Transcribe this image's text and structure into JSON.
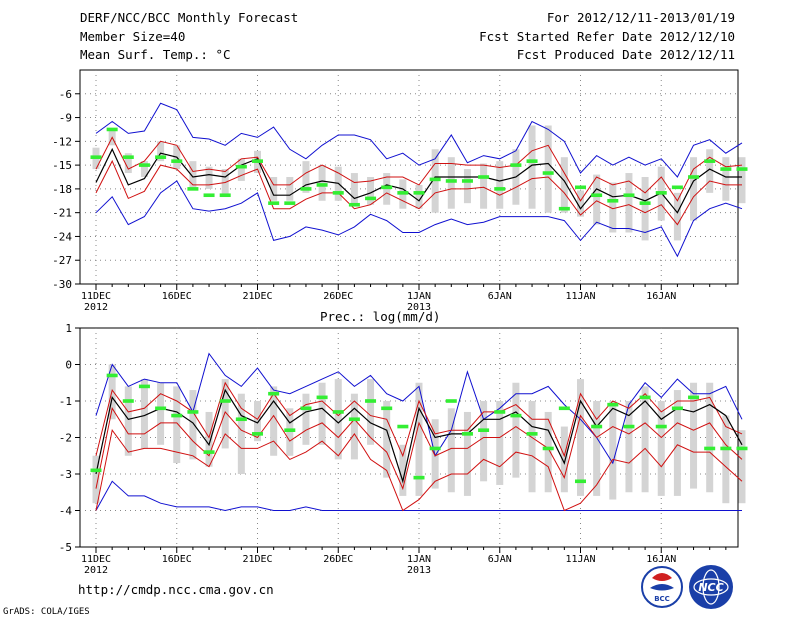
{
  "header": {
    "title": "DERF/NCC/BCC Monthly Forecast",
    "member_size": "Member Size=40",
    "variable": "Mean Surf. Temp.: °C",
    "period": "For 2012/12/11-2013/01/19",
    "start_date": "Fcst Started Refer Date 2012/12/10",
    "produced_date": "Fcst Produced Date 2012/12/11"
  },
  "footer": {
    "url": "http://cmdp.ncc.cma.gov.cn",
    "credit": "GrADS: COLA/IGES",
    "logo_bcc": "BCC",
    "logo_ncc": "NCC"
  },
  "colors": {
    "envelope": "#1010d0",
    "spread": "#d01010",
    "mean": "#000000",
    "obs": "#33ee33",
    "box": "#d4d4d4",
    "grid": "#888888"
  },
  "chart_data": [
    {
      "type": "line",
      "title": "Mean Surf. Temp.: °C",
      "x_ticks": [
        "11DEC",
        "16DEC",
        "21DEC",
        "26DEC",
        "1JAN",
        "6JAN",
        "11JAN",
        "16JAN"
      ],
      "x_tick_years": [
        "2012",
        "",
        "",
        "",
        "2013",
        "",
        "",
        ""
      ],
      "ylim": [
        -30,
        -3
      ],
      "yticks": [
        -30,
        -27,
        -24,
        -21,
        -18,
        -15,
        -12,
        -9,
        -6
      ],
      "n_days": 40,
      "series": [
        {
          "name": "max",
          "values": [
            -11,
            -9.5,
            -11,
            -10.7,
            -7.2,
            -8,
            -11.5,
            -11.7,
            -12.5,
            -11,
            -11.5,
            -10.2,
            -13,
            -14.2,
            -12.5,
            -11.2,
            -11.2,
            -11.8,
            -14.2,
            -13.5,
            -15,
            -14.2,
            -11.2,
            -14.7,
            -13.8,
            -14.2,
            -13.2,
            -9.5,
            -10.5,
            -12,
            -16,
            -13.8,
            -15,
            -14,
            -15,
            -14.2,
            -16.5,
            -12.5,
            -11.8,
            -13.5,
            -12.2
          ]
        },
        {
          "name": "upper",
          "values": [
            -15.5,
            -11.5,
            -15.5,
            -14.5,
            -12,
            -12.5,
            -15.8,
            -15.5,
            -15.8,
            -14.2,
            -14,
            -17.5,
            -17.5,
            -16,
            -15,
            -16,
            -17.2,
            -17,
            -16.5,
            -16.5,
            -17.5,
            -14.8,
            -14.8,
            -15,
            -15,
            -15.3,
            -15,
            -13.2,
            -12.5,
            -16,
            -19.5,
            -16.5,
            -17.5,
            -17,
            -18.5,
            -16.5,
            -19.5,
            -15.5,
            -14,
            -15.2,
            -15
          ]
        },
        {
          "name": "mean",
          "values": [
            -17.2,
            -13,
            -17.5,
            -16.7,
            -13.5,
            -14,
            -16.5,
            -16.2,
            -16.5,
            -15,
            -14.2,
            -18.8,
            -18.8,
            -17.5,
            -17,
            -17.3,
            -19.2,
            -18.5,
            -17.5,
            -18,
            -19.5,
            -16.5,
            -16.5,
            -16.5,
            -16.5,
            -17,
            -16.5,
            -15,
            -14.8,
            -17,
            -20.5,
            -18,
            -19,
            -18.8,
            -19.5,
            -18.5,
            -21,
            -17,
            -15.5,
            -16.5,
            -16.5
          ]
        },
        {
          "name": "lower",
          "values": [
            -18.5,
            -14.5,
            -19.2,
            -18.3,
            -15,
            -15.5,
            -17.5,
            -17.5,
            -17.2,
            -16.3,
            -15.5,
            -20.5,
            -20.5,
            -19.3,
            -18.5,
            -18.5,
            -20.5,
            -20,
            -18.5,
            -19.5,
            -20.5,
            -18.5,
            -18,
            -18,
            -17.8,
            -18.8,
            -17.8,
            -16.7,
            -16.5,
            -18.5,
            -21.3,
            -19.5,
            -20.5,
            -20,
            -21,
            -20,
            -22.5,
            -19,
            -17,
            -17.5,
            -17.5
          ]
        },
        {
          "name": "min",
          "values": [
            -21,
            -19,
            -22.5,
            -21.5,
            -18.5,
            -17,
            -20.5,
            -20.8,
            -20.5,
            -19.8,
            -18.5,
            -24.5,
            -24,
            -22.8,
            -23.2,
            -23.8,
            -22.8,
            -21.2,
            -22,
            -23.5,
            -23.5,
            -22.5,
            -21.8,
            -22.5,
            -22.2,
            -21.5,
            -21.5,
            -21.5,
            -21.5,
            -22,
            -24.5,
            -22.2,
            -23,
            -23,
            -23.5,
            -22.8,
            -26.5,
            -22,
            -20.5,
            -19.8,
            -20.5
          ]
        },
        {
          "name": "box_top",
          "values": [
            -12.8,
            -10.5,
            -13.5,
            -14.5,
            -12,
            -12.5,
            -14.5,
            -15.2,
            -15.5,
            -14.2,
            -13.2,
            -16.5,
            -16.5,
            -14.5,
            -15,
            -15.2,
            -16,
            -16.5,
            -16,
            -16.8,
            -17.5,
            -13,
            -14,
            -15.5,
            -14.8,
            -14.5,
            -13,
            -10,
            -10,
            -14,
            -18.2,
            -16.2,
            -17.2,
            -16,
            -16.5,
            -15.2,
            -18.5,
            -14,
            -13,
            -14,
            -14
          ]
        },
        {
          "name": "box_bottom",
          "values": [
            -15.5,
            -12.5,
            -16,
            -16.5,
            -14.5,
            -15.5,
            -18,
            -18,
            -19,
            -17,
            -16,
            -19.5,
            -19.5,
            -18.5,
            -19.5,
            -19.5,
            -20,
            -20,
            -20,
            -20.5,
            -20.5,
            -21,
            -20.5,
            -19.8,
            -20.5,
            -20.5,
            -20,
            -20.5,
            -21,
            -21,
            -21.5,
            -22.5,
            -23.5,
            -23.5,
            -24.5,
            -22,
            -24.5,
            -22,
            -18.5,
            -19.5,
            -19.8
          ]
        },
        {
          "name": "observed",
          "values": [
            -14,
            -10.5,
            -14,
            -15,
            -14,
            -14.5,
            -18,
            -18.8,
            -18.8,
            -15.2,
            -14.5,
            -19.8,
            -19.8,
            -18,
            -17.5,
            -18.5,
            -20,
            -19.2,
            -17.8,
            -18.5,
            -18.5,
            -16.8,
            -17,
            -17,
            -16.5,
            -18,
            -15,
            -14.5,
            -16,
            -20.5,
            -17.8,
            -18.8,
            -19.5,
            -18.8,
            -19.8,
            -18.5,
            -17.8,
            -16.5,
            -14.5,
            -15.5,
            -15.5
          ]
        }
      ]
    },
    {
      "type": "line",
      "title": "Prec.: log(mm/d)",
      "x_ticks": [
        "11DEC",
        "16DEC",
        "21DEC",
        "26DEC",
        "1JAN",
        "6JAN",
        "11JAN",
        "16JAN"
      ],
      "x_tick_years": [
        "2012",
        "",
        "",
        "",
        "2013",
        "",
        "",
        ""
      ],
      "ylim": [
        -5,
        1
      ],
      "yticks": [
        -5,
        -4,
        -3,
        -2,
        -1,
        0,
        1
      ],
      "n_days": 40,
      "series": [
        {
          "name": "max",
          "values": [
            -1.4,
            0,
            -0.6,
            -0.4,
            -0.5,
            -0.5,
            -1.3,
            0.3,
            -0.3,
            -0.6,
            -0.1,
            -0.7,
            -0.8,
            -0.6,
            -0.4,
            -0.2,
            -0.6,
            -0.3,
            -0.8,
            -1,
            -0.6,
            -2.5,
            -1.8,
            -0.2,
            -1.5,
            -1.2,
            -0.8,
            -0.8,
            -0.6,
            -1.1,
            -1.5,
            -2,
            -2.7,
            -1.1,
            -0.5,
            -0.9,
            -0.4,
            -0.8,
            -0.8,
            -0.6,
            -1.5
          ]
        },
        {
          "name": "upper",
          "values": [
            -2.5,
            -0.7,
            -1.3,
            -1.2,
            -0.8,
            -1,
            -1.3,
            -2,
            -0.5,
            -1.2,
            -1.5,
            -0.8,
            -1.4,
            -1.1,
            -1,
            -1.4,
            -1,
            -1.4,
            -1.5,
            -2.5,
            -1,
            -1.9,
            -1.8,
            -1.8,
            -1.3,
            -1.3,
            -1.1,
            -1.5,
            -1.5,
            -2.5,
            -0.8,
            -1.5,
            -1,
            -1.2,
            -0.8,
            -1.3,
            -1,
            -1,
            -0.9,
            -1.7,
            -1.9
          ]
        },
        {
          "name": "mean",
          "values": [
            -3,
            -0.9,
            -1.5,
            -1.4,
            -1.2,
            -1.3,
            -1.6,
            -2.2,
            -0.7,
            -1.4,
            -1.6,
            -1,
            -1.6,
            -1.3,
            -1.2,
            -1.6,
            -1.2,
            -1.6,
            -1.8,
            -3.2,
            -1.2,
            -2,
            -1.9,
            -1.9,
            -1.5,
            -1.5,
            -1.3,
            -1.7,
            -1.8,
            -2.7,
            -1,
            -1.7,
            -1.2,
            -1.4,
            -1,
            -1.5,
            -1.2,
            -1.3,
            -1.1,
            -1.4,
            -2.2
          ]
        },
        {
          "name": "lower",
          "values": [
            -3.4,
            -1.2,
            -1.9,
            -1.9,
            -1.6,
            -1.6,
            -2.1,
            -2.5,
            -1.3,
            -1.8,
            -2,
            -1.4,
            -2.1,
            -1.8,
            -1.6,
            -2,
            -1.5,
            -2,
            -2.4,
            -3.4,
            -1.6,
            -2.5,
            -2.3,
            -2.3,
            -2,
            -2,
            -1.7,
            -2,
            -2.3,
            -3.1,
            -1.4,
            -2,
            -1.7,
            -1.9,
            -1.6,
            -2,
            -1.6,
            -1.8,
            -1.6,
            -2.2,
            -2.6
          ]
        },
        {
          "name": "lowest",
          "values": [
            -4,
            -1.8,
            -2.4,
            -2.3,
            -2.3,
            -2.4,
            -2.5,
            -2.8,
            -1.9,
            -2.3,
            -2.3,
            -2.1,
            -2.6,
            -2.4,
            -2.1,
            -2.5,
            -1.9,
            -2.6,
            -2.9,
            -4,
            -3.7,
            -3.2,
            -3,
            -3,
            -2.6,
            -2.8,
            -2.4,
            -2.5,
            -2.8,
            -4,
            -3.8,
            -3.3,
            -2.6,
            -2.7,
            -2.3,
            -2.8,
            -2.2,
            -2.4,
            -2.4,
            -2.8,
            -3.2
          ]
        },
        {
          "name": "min",
          "values": [
            -4,
            -3.2,
            -3.6,
            -3.6,
            -3.8,
            -3.9,
            -3.9,
            -3.9,
            -4,
            -3.9,
            -3.9,
            -4,
            -4,
            -3.9,
            -4,
            -4,
            -4,
            -4,
            -4,
            -4,
            -4,
            -4,
            -4,
            -4,
            -4,
            -4,
            -4,
            -4,
            -4,
            -4,
            -4,
            -4,
            -4,
            -4,
            -4,
            -4,
            -4,
            -4,
            -4,
            -4,
            -4
          ]
        },
        {
          "name": "box_top",
          "values": [
            -2.5,
            0,
            -0.6,
            -0.4,
            -0.5,
            -0.6,
            -0.7,
            -1.3,
            -0.4,
            -0.8,
            -1,
            -0.6,
            -1.2,
            -0.8,
            -0.5,
            -0.4,
            -0.8,
            -0.4,
            -1,
            -2.2,
            -0.5,
            -1.5,
            -1.2,
            -1.3,
            -1,
            -1,
            -0.5,
            -1,
            -1.3,
            -1.7,
            -0.4,
            -1,
            -1,
            -1,
            -0.6,
            -1,
            -0.7,
            -0.5,
            -0.5,
            -1.4,
            -1.8
          ]
        },
        {
          "name": "box_bottom",
          "values": [
            -3.8,
            -1.5,
            -2.5,
            -2.3,
            -2.2,
            -2.7,
            -2.6,
            -2.8,
            -2.3,
            -3,
            -2.1,
            -2.5,
            -2.5,
            -2.2,
            -2.2,
            -2.6,
            -2.6,
            -2.2,
            -3.1,
            -3.6,
            -3.6,
            -3.4,
            -3.5,
            -3.6,
            -3.2,
            -3.3,
            -3.1,
            -3.5,
            -3.5,
            -3.5,
            -3.6,
            -3.6,
            -3.7,
            -3.5,
            -3.5,
            -3.6,
            -3.6,
            -3.4,
            -3.5,
            -3.8,
            -3.8
          ]
        },
        {
          "name": "observed",
          "values": [
            -2.9,
            -0.3,
            -1,
            -0.6,
            -1.2,
            -1.4,
            -1.3,
            -2.4,
            -1,
            -1.5,
            -1.9,
            -0.8,
            -1.8,
            -1.2,
            -0.9,
            -1.3,
            -1.5,
            -1,
            -1.2,
            -1.7,
            -3.1,
            -2.3,
            -1,
            -1.9,
            -1.8,
            -1.3,
            -1.4,
            -1.9,
            -2.3,
            -1.2,
            -3.2,
            -1.7,
            -1.1,
            -1.7,
            -0.9,
            -1.7,
            -1.2,
            -0.9,
            -2.3,
            -2.3,
            -2.3
          ]
        }
      ]
    }
  ]
}
